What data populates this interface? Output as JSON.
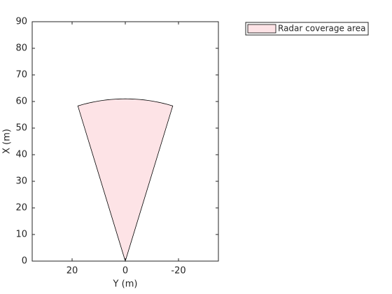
{
  "chart_data": {
    "type": "coverage",
    "xlabel": "Y (m)",
    "ylabel": "X (m)",
    "xlim": [
      35,
      -35
    ],
    "ylim": [
      0,
      90
    ],
    "xticks": [
      20,
      0,
      -20
    ],
    "yticks": [
      0,
      10,
      20,
      30,
      40,
      50,
      60,
      70,
      80,
      90
    ],
    "series": [
      {
        "name": "Radar coverage area",
        "color": "#fde3e6",
        "position": [
          0,
          0
        ],
        "range": 61,
        "fov": 34
      }
    ],
    "legend": "outside-right"
  }
}
